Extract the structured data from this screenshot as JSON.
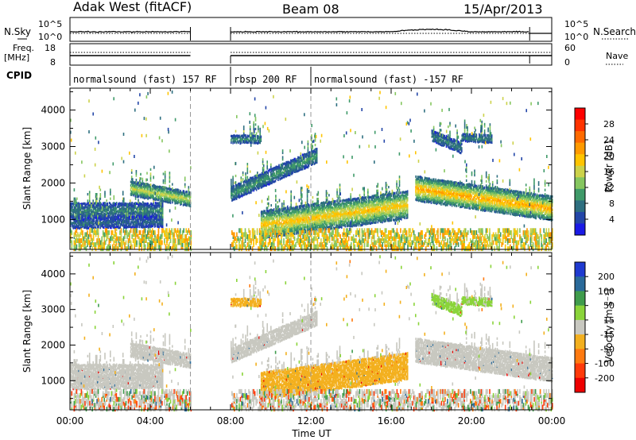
{
  "header": {
    "station": "Adak West (fitACF)",
    "beam": "Beam 08",
    "date": "15/Apr/2013"
  },
  "status_panels": {
    "nsky_label": "N.Sky",
    "nsearch_label": "N.Search",
    "noise_ticks": [
      "10^5",
      "10^0"
    ],
    "freq_label_1": "Freq.",
    "freq_label_2": "[MHz]",
    "freq_ticks": [
      "18",
      "8"
    ],
    "nave_label": "Nave",
    "nave_ticks": [
      "60",
      "0"
    ],
    "cpid_label": "CPID",
    "cpid_segments": [
      {
        "label": "normalsound (fast) 157 RF",
        "start_hr": 0.0,
        "end_hr": 6.0
      },
      {
        "label": "rbsp 200 RF",
        "start_hr": 8.0,
        "end_hr": 12.0
      },
      {
        "label": "normalsound (fast) -157 RF",
        "start_hr": 12.0,
        "end_hr": 24.0
      }
    ]
  },
  "axes": {
    "x_ticks": [
      "00:00",
      "04:00",
      "08:00",
      "12:00",
      "16:00",
      "20:00",
      "00:00"
    ],
    "x_label": "Time UT",
    "y_label": "Slant Range [km]",
    "y_ticks": [
      "1000",
      "2000",
      "3000",
      "4000"
    ]
  },
  "power_colorbar": {
    "label": "Power [dB]",
    "ticks": [
      "28",
      "24",
      "20",
      "16",
      "12",
      "8",
      "4"
    ],
    "colors": [
      "#ff0000",
      "#ff3300",
      "#ff6a00",
      "#ff9a00",
      "#ffc400",
      "#ccd24a",
      "#85c65f",
      "#3f9a69",
      "#2e6f80",
      "#2346a8",
      "#1a1ae6"
    ]
  },
  "velocity_colorbar": {
    "label": "Velocity [m s⁻¹]",
    "ticks": [
      "200",
      "100",
      "50",
      "15",
      "-15",
      "-50",
      "-100",
      "-200"
    ],
    "colors": [
      "#1f3ad0",
      "#2a6a9a",
      "#3f9c4c",
      "#8ad43a",
      "#c8c8c0",
      "#f3b01f",
      "#ff7a10",
      "#ff3a0a",
      "#ee0000"
    ]
  },
  "chart_data": {
    "type": "heatmap",
    "x_range_hours": [
      0,
      24
    ],
    "y_range_km": [
      180,
      4600
    ],
    "data_gaps_hours": [
      [
        6.0,
        8.0
      ]
    ],
    "power_bands": [
      {
        "t0": 0.0,
        "t1": 4.6,
        "r0": 1250,
        "r1": 1250,
        "w": 200,
        "p": 8
      },
      {
        "t0": 0.0,
        "t1": 4.6,
        "r0": 900,
        "r1": 940,
        "w": 120,
        "p": 6
      },
      {
        "t0": 3.0,
        "t1": 6.0,
        "r0": 1850,
        "r1": 1550,
        "w": 200,
        "p": 16
      },
      {
        "t0": 8.0,
        "t1": 12.3,
        "r0": 1700,
        "r1": 2750,
        "w": 200,
        "p": 10
      },
      {
        "t0": 9.5,
        "t1": 16.8,
        "r0": 850,
        "r1": 1400,
        "w": 380,
        "p": 20
      },
      {
        "t0": 17.2,
        "t1": 24.0,
        "r0": 1850,
        "r1": 1300,
        "w": 300,
        "p": 22
      },
      {
        "t0": 8.0,
        "t1": 9.5,
        "r0": 3200,
        "r1": 3200,
        "w": 100,
        "p": 9
      },
      {
        "t0": 18.0,
        "t1": 19.5,
        "r0": 3300,
        "r1": 2950,
        "w": 130,
        "p": 8
      },
      {
        "t0": 19.5,
        "t1": 21.0,
        "r0": 3250,
        "r1": 3200,
        "w": 100,
        "p": 8
      }
    ],
    "velocity_bands": [
      {
        "t0": 0.0,
        "t1": 4.6,
        "r0": 1250,
        "r1": 1250,
        "w": 200,
        "v": 0
      },
      {
        "t0": 0.0,
        "t1": 4.6,
        "r0": 900,
        "r1": 940,
        "w": 120,
        "v": 0
      },
      {
        "t0": 3.0,
        "t1": 6.0,
        "r0": 1850,
        "r1": 1550,
        "w": 200,
        "v": 0
      },
      {
        "t0": 8.0,
        "t1": 12.3,
        "r0": 1700,
        "r1": 2750,
        "w": 200,
        "v": 0
      },
      {
        "t0": 9.5,
        "t1": 16.8,
        "r0": 850,
        "r1": 1400,
        "w": 380,
        "v": -40
      },
      {
        "t0": 17.2,
        "t1": 24.0,
        "r0": 1850,
        "r1": 1300,
        "w": 300,
        "v": 0
      },
      {
        "t0": 8.0,
        "t1": 9.5,
        "r0": 3200,
        "r1": 3200,
        "w": 100,
        "v": -40
      },
      {
        "t0": 18.0,
        "t1": 19.5,
        "r0": 3300,
        "r1": 2950,
        "w": 130,
        "v": 40
      },
      {
        "t0": 19.5,
        "t1": 21.0,
        "r0": 3250,
        "r1": 3200,
        "w": 100,
        "v": 20
      }
    ]
  }
}
